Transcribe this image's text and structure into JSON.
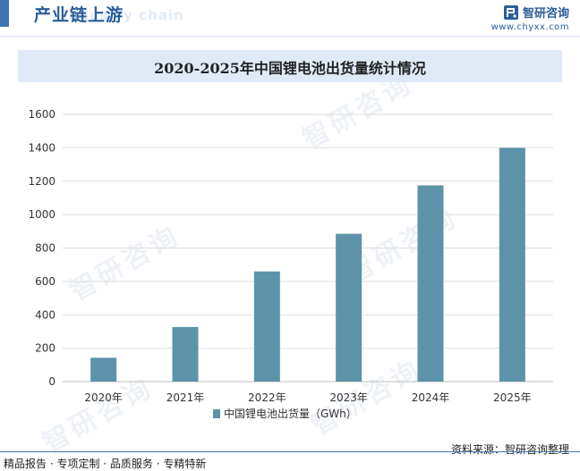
{
  "header": {
    "title": "产业链上游",
    "watermark": "Industry chain"
  },
  "brand": {
    "name": "智研咨询",
    "url": "www.chyxx.com",
    "logo_icon": "chyxx-logo-icon"
  },
  "watermark_text": "智研咨询",
  "chart_data": {
    "type": "bar",
    "title": "2020-2025年中国锂电池出货量统计情况",
    "categories": [
      "2020年",
      "2021年",
      "2022年",
      "2023年",
      "2024年",
      "2025年"
    ],
    "series": [
      {
        "name": "中国锂电池出货量（GWh）",
        "values": [
          143,
          327,
          660,
          885,
          1175,
          1400
        ]
      }
    ],
    "ylim": [
      0,
      1600
    ],
    "yticks": [
      0,
      200,
      400,
      600,
      800,
      1000,
      1200,
      1400,
      1600
    ],
    "xlabel": "",
    "ylabel": "",
    "grid": true,
    "legend_position": "bottom",
    "colors": {
      "bar": "#5d93a8",
      "grid": "#dedede",
      "axis": "#bfbfbf"
    }
  },
  "footer": {
    "left": "精品报告 · 专项定制 · 品质服务 · 专精特新",
    "right": "资料来源：智研咨询整理"
  }
}
